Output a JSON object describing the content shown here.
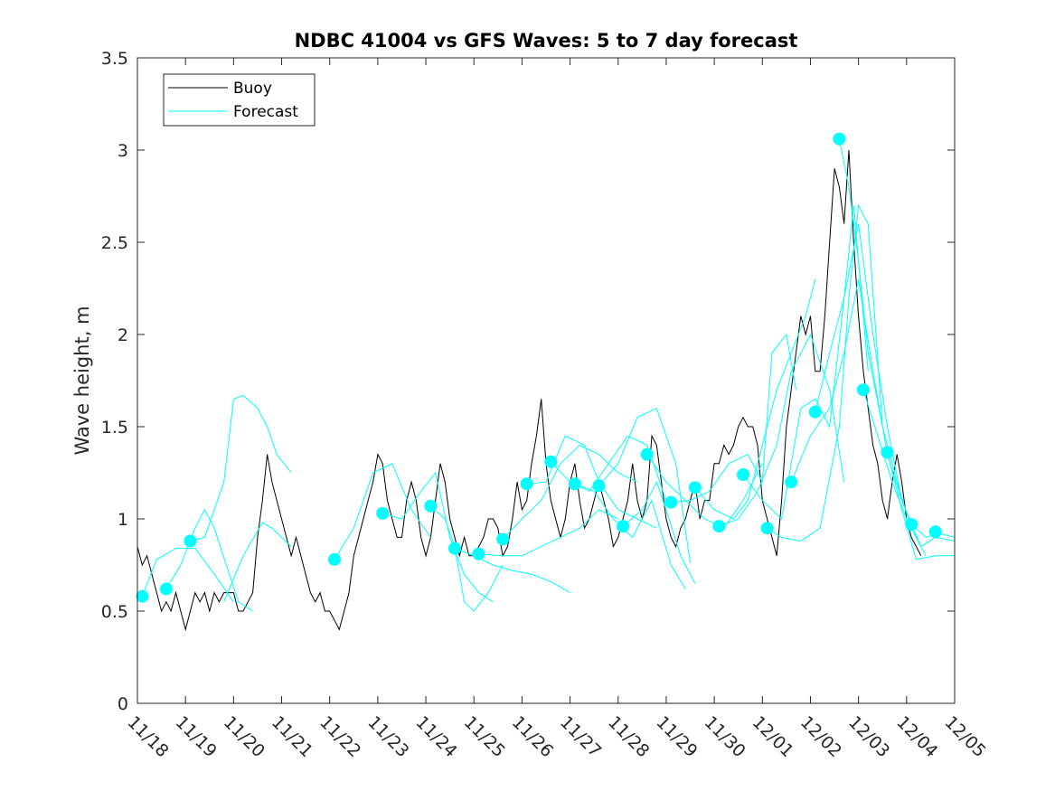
{
  "chart_data": {
    "type": "line",
    "title": "NDBC 41004 vs GFS Waves: 5 to 7 day forecast",
    "xlabel": "",
    "ylabel": "Wave height, m",
    "ylim": [
      0,
      3.5
    ],
    "yticks": [
      0,
      0.5,
      1,
      1.5,
      2,
      2.5,
      3,
      3.5
    ],
    "ytick_labels": [
      "0",
      "0.5",
      "1",
      "1.5",
      "2",
      "2.5",
      "3",
      "3.5"
    ],
    "xlim": [
      0,
      17
    ],
    "xtick_labels": [
      "11/18",
      "11/19",
      "11/20",
      "11/21",
      "11/22",
      "11/23",
      "11/24",
      "11/25",
      "11/26",
      "11/27",
      "11/28",
      "11/29",
      "11/30",
      "12/01",
      "12/02",
      "12/03",
      "12/04",
      "12/05"
    ],
    "legend": {
      "position": "top-left",
      "entries": [
        {
          "label": "Buoy",
          "color": "#000000"
        },
        {
          "label": "Forecast",
          "color": "#00ffff"
        }
      ]
    },
    "series": [
      {
        "name": "Buoy",
        "color": "#000000",
        "x": [
          0,
          0.1,
          0.2,
          0.3,
          0.4,
          0.5,
          0.6,
          0.7,
          0.8,
          0.9,
          1.0,
          1.1,
          1.2,
          1.3,
          1.4,
          1.5,
          1.6,
          1.7,
          1.8,
          1.9,
          2.0,
          2.1,
          2.2,
          2.3,
          2.4,
          2.5,
          2.6,
          2.7,
          2.8,
          2.9,
          3.0,
          3.1,
          3.2,
          3.3,
          3.4,
          3.5,
          3.6,
          3.7,
          3.8,
          3.9,
          4.0,
          4.1,
          4.2,
          4.3,
          4.4,
          4.5,
          4.6,
          4.7,
          4.8,
          4.9,
          5.0,
          5.1,
          5.2,
          5.3,
          5.4,
          5.5,
          5.6,
          5.7,
          5.8,
          5.9,
          6.0,
          6.1,
          6.2,
          6.3,
          6.4,
          6.5,
          6.6,
          6.7,
          6.8,
          6.9,
          7.0,
          7.1,
          7.2,
          7.3,
          7.4,
          7.5,
          7.6,
          7.7,
          7.8,
          7.9,
          8.0,
          8.1,
          8.2,
          8.3,
          8.4,
          8.5,
          8.6,
          8.7,
          8.8,
          8.9,
          9.0,
          9.1,
          9.2,
          9.3,
          9.4,
          9.5,
          9.6,
          9.7,
          9.8,
          9.9,
          10.0,
          10.1,
          10.2,
          10.3,
          10.4,
          10.5,
          10.6,
          10.7,
          10.8,
          10.9,
          11.0,
          11.1,
          11.2,
          11.3,
          11.4,
          11.5,
          11.6,
          11.7,
          11.8,
          11.9,
          12.0,
          12.1,
          12.2,
          12.3,
          12.4,
          12.5,
          12.6,
          12.7,
          12.8,
          12.9,
          13.0,
          13.1,
          13.2,
          13.3,
          13.4,
          13.5,
          13.6,
          13.7,
          13.8,
          13.9,
          14.0,
          14.1,
          14.2,
          14.3,
          14.4,
          14.5,
          14.6,
          14.7,
          14.8,
          14.9,
          15.0,
          15.1,
          15.2,
          15.3,
          15.4,
          15.5,
          15.6,
          15.7,
          15.8,
          15.9,
          16.0,
          16.1,
          16.2,
          16.3
        ],
        "values": [
          0.85,
          0.75,
          0.8,
          0.7,
          0.6,
          0.5,
          0.55,
          0.5,
          0.6,
          0.5,
          0.4,
          0.5,
          0.6,
          0.55,
          0.6,
          0.5,
          0.6,
          0.55,
          0.6,
          0.6,
          0.6,
          0.5,
          0.5,
          0.55,
          0.6,
          0.9,
          1.1,
          1.35,
          1.2,
          1.1,
          1.0,
          0.9,
          0.8,
          0.9,
          0.8,
          0.7,
          0.6,
          0.55,
          0.6,
          0.5,
          0.5,
          0.45,
          0.4,
          0.5,
          0.6,
          0.8,
          0.9,
          1.0,
          1.1,
          1.2,
          1.35,
          1.3,
          1.1,
          1.0,
          0.9,
          0.9,
          1.1,
          1.2,
          1.1,
          0.9,
          0.8,
          0.9,
          1.1,
          1.3,
          1.2,
          1.0,
          0.9,
          0.8,
          0.9,
          0.8,
          0.8,
          0.85,
          0.9,
          1.0,
          1.0,
          0.95,
          0.8,
          0.85,
          1.0,
          1.2,
          1.05,
          1.1,
          1.3,
          1.45,
          1.65,
          1.3,
          1.1,
          1.0,
          0.9,
          1.0,
          1.2,
          1.3,
          1.1,
          0.95,
          1.0,
          1.1,
          1.2,
          1.1,
          1.0,
          0.85,
          0.9,
          1.0,
          1.1,
          1.3,
          1.1,
          1.0,
          1.1,
          1.45,
          1.4,
          1.2,
          1.0,
          0.9,
          0.85,
          0.95,
          1.0,
          1.1,
          1.2,
          1.0,
          1.1,
          1.1,
          1.3,
          1.3,
          1.4,
          1.35,
          1.4,
          1.5,
          1.55,
          1.5,
          1.5,
          1.4,
          1.1,
          1.0,
          0.9,
          0.8,
          1.1,
          1.5,
          1.7,
          1.9,
          2.1,
          2.0,
          2.1,
          1.8,
          1.8,
          2.1,
          2.5,
          2.9,
          2.8,
          2.6,
          3.0,
          2.5,
          2.1,
          1.8,
          1.6,
          1.4,
          1.3,
          1.1,
          1.0,
          1.2,
          1.35,
          1.2,
          1.0,
          0.9,
          0.85,
          0.8
        ]
      },
      {
        "name": "Forecast",
        "color": "#00ffff",
        "segments": [
          {
            "x": [
              0.1,
              0.4,
              0.8,
              1.2,
              1.6,
              2.0
            ],
            "values": [
              0.58,
              0.78,
              0.84,
              0.84,
              0.7,
              0.55
            ]
          },
          {
            "x": [
              0.6,
              0.9,
              1.2,
              1.4,
              1.6,
              2.1,
              2.4
            ],
            "values": [
              0.62,
              0.75,
              0.95,
              1.05,
              0.95,
              0.55,
              0.5
            ]
          },
          {
            "x": [
              1.1,
              1.4,
              1.8,
              2.0,
              2.2,
              2.5,
              2.7,
              2.9,
              3.2
            ],
            "values": [
              0.88,
              0.9,
              1.2,
              1.65,
              1.67,
              1.6,
              1.5,
              1.35,
              1.25
            ]
          },
          {
            "x": [
              1.8,
              2.2,
              2.6,
              2.8,
              3.0,
              3.2
            ],
            "values": [
              0.55,
              0.8,
              0.98,
              0.95,
              0.9,
              0.85
            ]
          },
          {
            "x": [
              4.1,
              4.5,
              4.9,
              5.3,
              5.7,
              6.1
            ],
            "values": [
              0.78,
              0.95,
              1.25,
              1.3,
              1.05,
              0.9
            ]
          },
          {
            "x": [
              5.1,
              5.5,
              5.9,
              6.2,
              6.5,
              6.8,
              7.1,
              7.4
            ],
            "values": [
              1.03,
              1.0,
              1.15,
              1.25,
              0.9,
              0.7,
              0.6,
              0.55
            ]
          },
          {
            "x": [
              6.1,
              6.4,
              6.6,
              6.8,
              7.0,
              7.3,
              7.6
            ],
            "values": [
              1.07,
              1.0,
              0.85,
              0.55,
              0.5,
              0.6,
              0.75
            ]
          },
          {
            "x": [
              6.6,
              7.0,
              7.4,
              7.8,
              8.2,
              8.6,
              9.0
            ],
            "values": [
              0.84,
              0.8,
              0.75,
              0.72,
              0.7,
              0.66,
              0.6
            ]
          },
          {
            "x": [
              7.1,
              7.6,
              8.0,
              8.4,
              8.8,
              9.2,
              9.6,
              10.0
            ],
            "values": [
              0.81,
              0.8,
              0.8,
              0.85,
              0.9,
              0.95,
              1.05,
              1.0
            ]
          },
          {
            "x": [
              7.6,
              8.0,
              8.4,
              8.8,
              9.2,
              9.6,
              10.0,
              10.4
            ],
            "values": [
              0.89,
              1.0,
              1.1,
              1.3,
              1.4,
              1.35,
              1.25,
              1.2
            ]
          },
          {
            "x": [
              8.1,
              8.5,
              8.9,
              9.3,
              9.6,
              10.0,
              10.4,
              10.8
            ],
            "values": [
              1.19,
              1.2,
              1.45,
              1.4,
              1.2,
              1.05,
              1.0,
              0.95
            ]
          },
          {
            "x": [
              8.6,
              9.0,
              9.4,
              9.8,
              10.2,
              10.6,
              11.0
            ],
            "values": [
              1.31,
              1.2,
              1.15,
              1.3,
              1.45,
              1.4,
              1.1
            ]
          },
          {
            "x": [
              9.1,
              9.5,
              9.9,
              10.3,
              10.7,
              11.1,
              11.4
            ],
            "values": [
              1.19,
              1.15,
              1.0,
              0.9,
              1.1,
              0.75,
              0.62
            ]
          },
          {
            "x": [
              9.6,
              10.0,
              10.4,
              10.8,
              11.2,
              11.5
            ],
            "values": [
              1.18,
              1.3,
              1.55,
              1.6,
              1.3,
              0.76
            ]
          },
          {
            "x": [
              10.1,
              10.5,
              10.8,
              11.0,
              11.3,
              11.6
            ],
            "values": [
              0.96,
              1.05,
              1.2,
              1.05,
              0.8,
              0.65
            ]
          },
          {
            "x": [
              10.6,
              11.0,
              11.4,
              11.8,
              12.2,
              12.6,
              13.0
            ],
            "values": [
              1.35,
              1.2,
              1.1,
              1.0,
              0.95,
              1.1,
              1.3
            ]
          },
          {
            "x": [
              11.1,
              11.5,
              11.9,
              12.3,
              12.7,
              13.0,
              13.2,
              13.5,
              13.7
            ],
            "values": [
              1.09,
              1.1,
              1.15,
              1.3,
              1.35,
              1.2,
              1.9,
              2.0,
              1.7
            ]
          },
          {
            "x": [
              11.6,
              12.0,
              12.4,
              12.7,
              13.0,
              13.3,
              13.6,
              13.9,
              14.1
            ],
            "values": [
              1.17,
              1.05,
              1.0,
              1.1,
              1.4,
              1.7,
              1.9,
              2.1,
              2.3
            ]
          },
          {
            "x": [
              12.1,
              12.5,
              12.9,
              13.3,
              13.6,
              14.0,
              14.4,
              14.7
            ],
            "values": [
              0.96,
              1.0,
              1.15,
              1.4,
              1.8,
              2.0,
              1.7,
              1.2
            ]
          },
          {
            "x": [
              12.6,
              13.0,
              13.4,
              13.8,
              14.1,
              14.4,
              14.7,
              14.9,
              15.2
            ],
            "values": [
              1.24,
              1.1,
              1.0,
              1.6,
              1.65,
              1.5,
              2.2,
              2.7,
              1.8
            ]
          },
          {
            "x": [
              13.1,
              13.4,
              13.8,
              14.2,
              14.6,
              14.8,
              15.0,
              15.2,
              15.5
            ],
            "values": [
              0.95,
              0.9,
              0.88,
              0.95,
              1.5,
              2.2,
              2.7,
              2.6,
              1.5
            ]
          },
          {
            "x": [
              13.6,
              14.0,
              14.4,
              14.7,
              15.0,
              15.3,
              15.6,
              15.9
            ],
            "values": [
              1.2,
              1.45,
              1.6,
              1.9,
              2.3,
              1.8,
              1.35,
              1.1
            ]
          },
          {
            "x": [
              14.1,
              14.4,
              14.7,
              15.0,
              15.3,
              15.6,
              15.9,
              16.3
            ],
            "values": [
              1.58,
              1.9,
              2.2,
              2.6,
              2.0,
              1.5,
              1.1,
              0.85
            ]
          },
          {
            "x": [
              14.6,
              14.8,
              15.0,
              15.2,
              15.5,
              15.8,
              16.1,
              16.4
            ],
            "values": [
              3.06,
              2.8,
              2.4,
              1.9,
              1.5,
              1.2,
              0.95,
              0.8
            ]
          },
          {
            "x": [
              15.1,
              15.4,
              15.7,
              16.0,
              16.3,
              16.6,
              17.0
            ],
            "values": [
              1.7,
              1.45,
              1.2,
              1.0,
              0.85,
              0.9,
              0.88
            ]
          },
          {
            "x": [
              15.6,
              15.9,
              16.2,
              16.6,
              17.0
            ],
            "values": [
              1.36,
              1.05,
              0.78,
              0.8,
              0.8
            ]
          },
          {
            "x": [
              16.1,
              16.4,
              16.7,
              17.0
            ],
            "values": [
              0.97,
              0.9,
              0.92,
              0.9
            ]
          }
        ],
        "markers": {
          "x": [
            0.1,
            0.6,
            1.1,
            4.1,
            5.1,
            6.1,
            6.6,
            7.1,
            7.6,
            8.1,
            8.6,
            9.1,
            9.6,
            10.1,
            10.6,
            11.1,
            11.6,
            12.1,
            12.6,
            13.1,
            13.6,
            14.1,
            14.6,
            15.1,
            15.6,
            16.1,
            16.6
          ],
          "values": [
            0.58,
            0.62,
            0.88,
            0.78,
            1.03,
            1.07,
            0.84,
            0.81,
            0.89,
            1.19,
            1.31,
            1.19,
            1.18,
            0.96,
            1.35,
            1.09,
            1.17,
            0.96,
            1.24,
            0.95,
            1.2,
            1.58,
            3.06,
            1.7,
            1.36,
            0.97,
            0.93
          ]
        }
      }
    ]
  }
}
